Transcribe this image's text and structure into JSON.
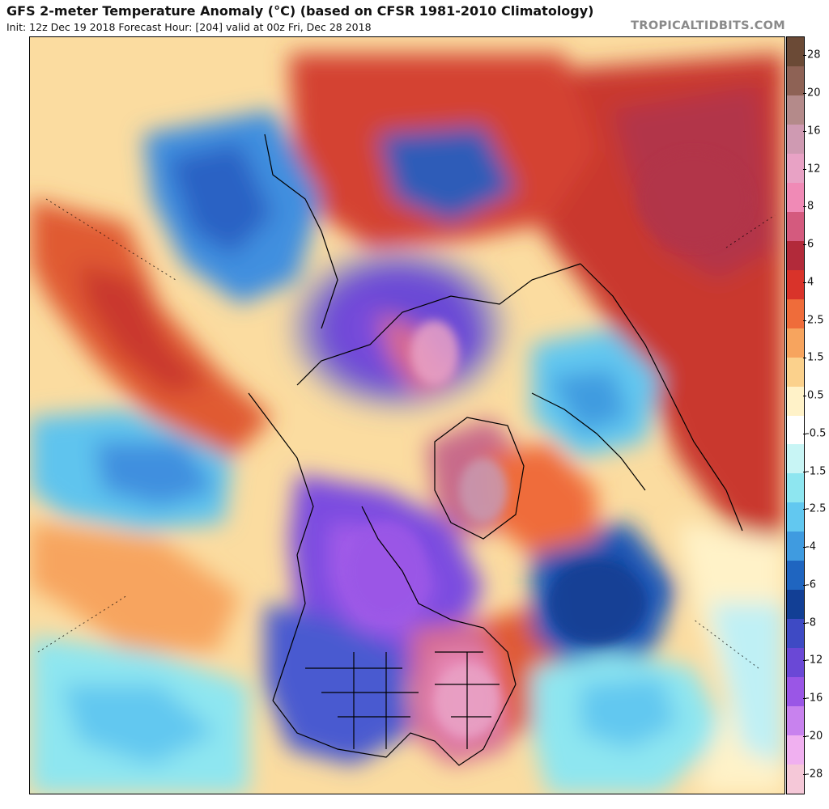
{
  "header": {
    "title": "GFS 2-meter Temperature Anomaly (°C) (based on CFSR 1981-2010 Climatology)",
    "subtitle": "Init: 12z Dec 19 2018   Forecast Hour: [204]   valid at 00z Fri, Dec 28 2018",
    "brand": "TROPICALTIDBITS.COM"
  },
  "map": {
    "projection": "polar stereographic (Northern Hemisphere)",
    "variable": "2-meter temperature anomaly",
    "units": "°C"
  },
  "colorbar": {
    "labels": [
      "28",
      "20",
      "16",
      "12",
      "8",
      "6",
      "4",
      "2.5",
      "1.5",
      "0.5",
      "-0.5",
      "-1.5",
      "-2.5",
      "-4",
      "-6",
      "-8",
      "-12",
      "-16",
      "-20",
      "-28"
    ],
    "colors": [
      "#6b4a36",
      "#8e6255",
      "#b48a8a",
      "#cf9ab2",
      "#e8a2c5",
      "#f08ab6",
      "#d45a7e",
      "#b22a3a",
      "#d9332a",
      "#ef6c3a",
      "#f7a45e",
      "#fbd18c",
      "#fff2c8",
      "#ffffff",
      "#c8f5f5",
      "#8ee6f0",
      "#62c8f0",
      "#3f9be0",
      "#1f65c0",
      "#123f95",
      "#3e4ac4",
      "#6a48d6",
      "#9a56e6",
      "#c882ee",
      "#f0b0f0",
      "#f5c8d8"
    ]
  }
}
